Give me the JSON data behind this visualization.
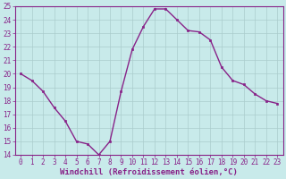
{
  "x": [
    0,
    1,
    2,
    3,
    4,
    5,
    6,
    7,
    8,
    9,
    10,
    11,
    12,
    13,
    14,
    15,
    16,
    17,
    18,
    19,
    20,
    21,
    22,
    23
  ],
  "y": [
    20.0,
    19.5,
    18.7,
    17.5,
    16.5,
    15.0,
    14.8,
    14.0,
    15.0,
    18.7,
    21.8,
    23.5,
    24.8,
    24.8,
    24.0,
    23.2,
    23.1,
    22.5,
    20.5,
    19.5,
    19.2,
    18.5,
    18.0,
    17.8
  ],
  "line_color": "#882288",
  "marker": "s",
  "marker_size": 2.0,
  "bg_color": "#c8eaea",
  "grid_color": "#aacccc",
  "xlabel": "Windchill (Refroidissement éolien,°C)",
  "xlabel_color": "#882288",
  "ylim": [
    14,
    25
  ],
  "xlim": [
    -0.5,
    23.5
  ],
  "yticks": [
    14,
    15,
    16,
    17,
    18,
    19,
    20,
    21,
    22,
    23,
    24,
    25
  ],
  "xticks": [
    0,
    1,
    2,
    3,
    4,
    5,
    6,
    7,
    8,
    9,
    10,
    11,
    12,
    13,
    14,
    15,
    16,
    17,
    18,
    19,
    20,
    21,
    22,
    23
  ],
  "tick_color": "#882288",
  "tick_fontsize": 5.5,
  "xlabel_fontsize": 6.5,
  "line_width": 1.0,
  "spine_color": "#882288"
}
